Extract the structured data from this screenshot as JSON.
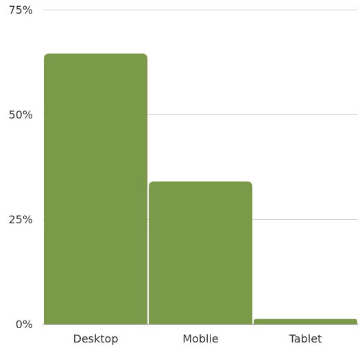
{
  "chart_data": {
    "type": "bar",
    "categories": [
      "Desktop",
      "Moblie",
      "Tablet"
    ],
    "values": [
      64.5,
      34,
      1.2
    ],
    "ylim": [
      0,
      75
    ],
    "yticks": [
      0,
      25,
      50,
      75
    ],
    "ytick_labels": [
      "0%",
      "25%",
      "50%",
      "75%"
    ],
    "unit": "%",
    "grid": true,
    "legend": "none",
    "bar_color": "#7a9a4a",
    "title": "",
    "xlabel": "",
    "ylabel": ""
  }
}
